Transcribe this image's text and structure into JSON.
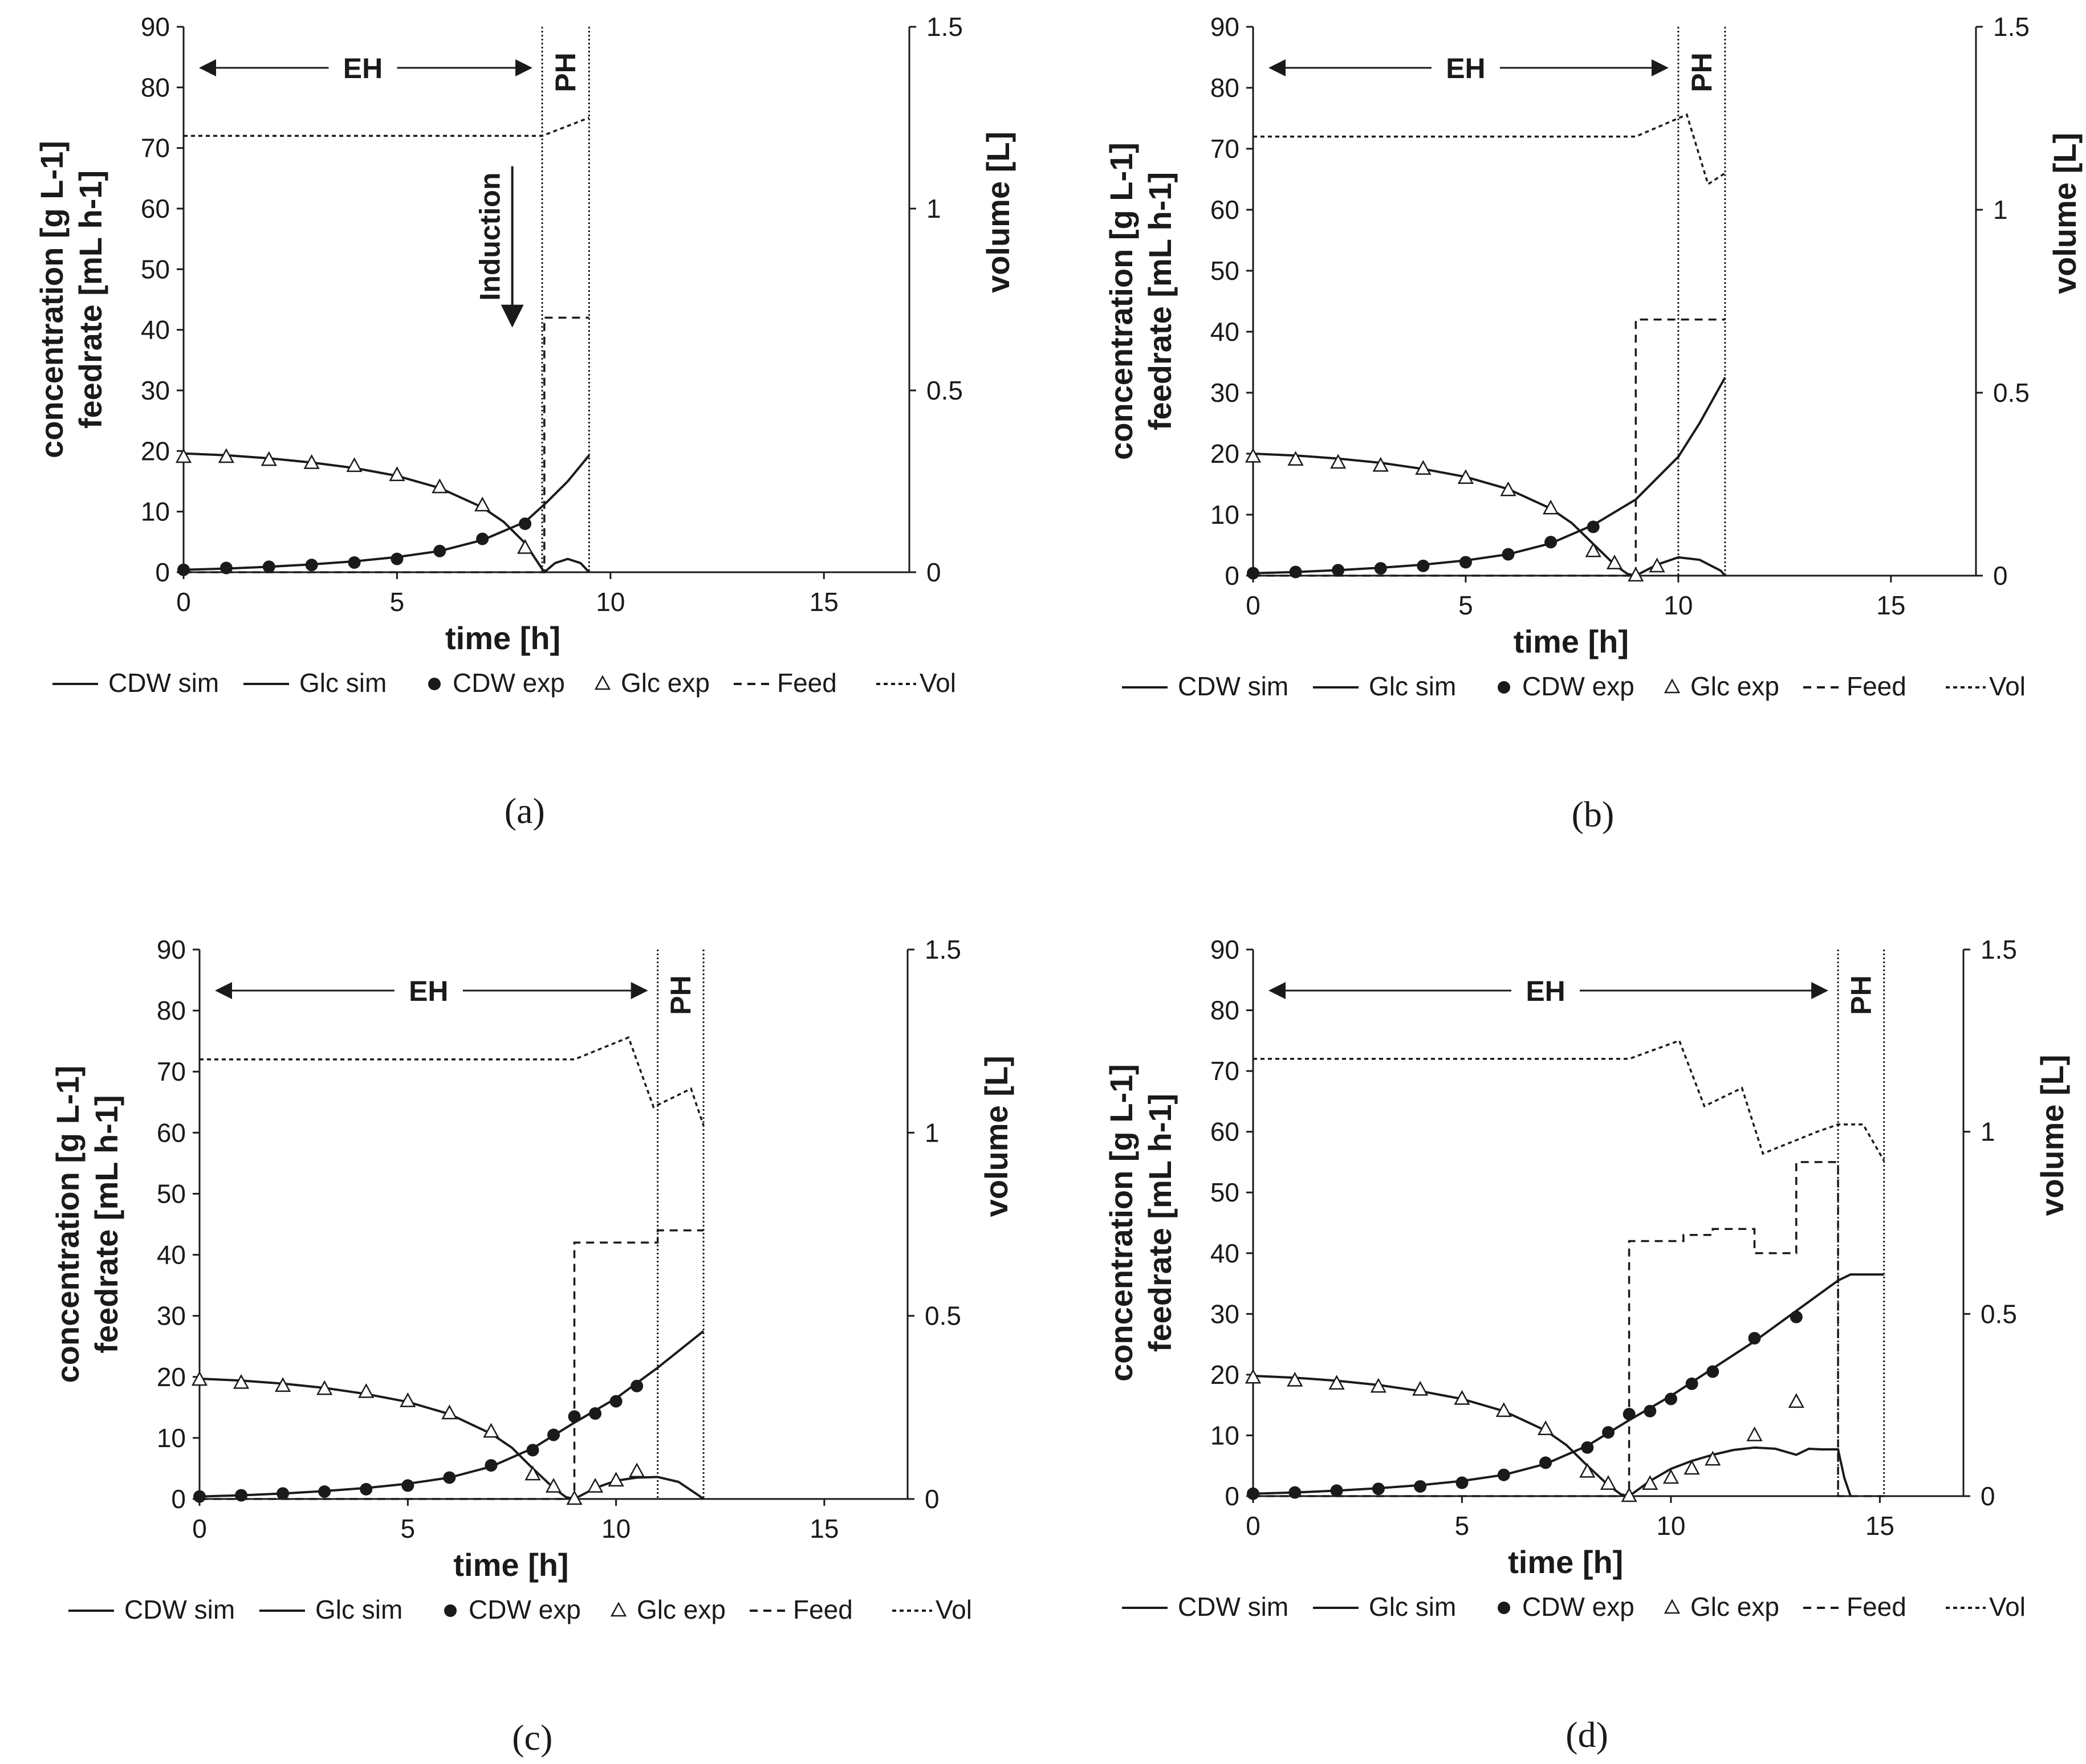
{
  "figure": {
    "legend": [
      "CDW sim",
      "Glc sim",
      "CDW exp",
      "Glc exp",
      "Feed",
      "Vol"
    ],
    "panels_caption_style": "(x)"
  },
  "chart_data": [
    {
      "panel": "a",
      "type": "line",
      "caption": "(a)",
      "xlabel": "time [h]",
      "ylabel_1": "concentration [g L-1]",
      "ylabel_2": "feedrate [mL h-1]",
      "y2label": "volume [L]",
      "xlim": [
        0,
        17
      ],
      "ylim": [
        0,
        90
      ],
      "y2lim": [
        0,
        1.5
      ],
      "x_ticks": [
        0,
        5,
        10,
        15
      ],
      "y_ticks": [
        0,
        10,
        20,
        30,
        40,
        50,
        60,
        70,
        80,
        90
      ],
      "y2_ticks": [
        0,
        0.5,
        1,
        1.5
      ],
      "phases": [
        {
          "label": "EH",
          "x0": 0,
          "x1": 8.4
        },
        {
          "label": "PH",
          "x0": 8.4,
          "x1": 9.5
        }
      ],
      "boundaries": [
        8.4,
        9.5
      ],
      "annotation": {
        "text": "Induction",
        "x": 7.7,
        "y_top": 67,
        "y_bottom": 40
      },
      "series": [
        {
          "name": "CDW sim",
          "x": [
            0,
            1,
            2,
            3,
            4,
            5,
            6,
            7,
            8,
            8.5,
            9,
            9.5
          ],
          "y": [
            0.4,
            0.6,
            0.9,
            1.3,
            1.8,
            2.5,
            3.5,
            5.3,
            8.3,
            11.5,
            15,
            19.3
          ]
        },
        {
          "name": "Glc sim",
          "x": [
            0,
            1,
            2,
            3,
            4,
            5,
            6,
            7,
            7.5,
            8,
            8.3,
            8.45,
            8.7,
            9,
            9.3,
            9.5
          ],
          "y": [
            19.6,
            19.3,
            18.8,
            18.1,
            17.2,
            15.9,
            13.9,
            10.7,
            8.3,
            4.8,
            1.6,
            0,
            1.5,
            2.2,
            1.5,
            0
          ]
        },
        {
          "name": "CDW exp",
          "x": [
            0,
            1,
            2,
            3,
            4,
            5,
            6,
            7,
            8
          ],
          "y": [
            0.4,
            0.7,
            0.9,
            1.2,
            1.6,
            2.2,
            3.5,
            5.5,
            8.0
          ]
        },
        {
          "name": "Glc exp",
          "x": [
            0,
            1,
            2,
            3,
            4,
            5,
            6,
            7,
            8
          ],
          "y": [
            19,
            19,
            18.5,
            18,
            17.5,
            16,
            14,
            11,
            4
          ]
        },
        {
          "name": "Feed",
          "x": [
            0,
            8.45,
            8.45,
            9.5
          ],
          "y": [
            0,
            0,
            42,
            42
          ]
        },
        {
          "name": "Vol",
          "x": [
            0,
            8.4,
            9.5
          ],
          "y": [
            1.2,
            1.2,
            1.25
          ]
        }
      ]
    },
    {
      "panel": "b",
      "type": "line",
      "caption": "(b)",
      "xlabel": "time [h]",
      "ylabel_1": "concentration [g L-1]",
      "ylabel_2": "feedrate [mL h-1]",
      "y2label": "volume [L]",
      "xlim": [
        0,
        17
      ],
      "ylim": [
        0,
        90
      ],
      "y2lim": [
        0,
        1.5
      ],
      "x_ticks": [
        0,
        5,
        10,
        15
      ],
      "y_ticks": [
        0,
        10,
        20,
        30,
        40,
        50,
        60,
        70,
        80,
        90
      ],
      "y2_ticks": [
        0,
        0.5,
        1,
        1.5
      ],
      "phases": [
        {
          "label": "EH",
          "x0": 0,
          "x1": 10
        },
        {
          "label": "PH",
          "x0": 10,
          "x1": 11.1
        }
      ],
      "boundaries": [
        10,
        11.1
      ],
      "series": [
        {
          "name": "CDW sim",
          "x": [
            0,
            1,
            2,
            3,
            4,
            5,
            6,
            7,
            8,
            9,
            10,
            10.5,
            11.1
          ],
          "y": [
            0.4,
            0.6,
            0.9,
            1.3,
            1.8,
            2.5,
            3.5,
            5.3,
            8.3,
            12.5,
            19.5,
            25,
            32.5
          ]
        },
        {
          "name": "Glc sim",
          "x": [
            0,
            1,
            2,
            3,
            4,
            5,
            6,
            7,
            7.5,
            8,
            8.5,
            8.8,
            9,
            9.5,
            10,
            10.5,
            11,
            11.1
          ],
          "y": [
            20,
            19.7,
            19.2,
            18.5,
            17.5,
            16.2,
            14.2,
            11,
            8.6,
            5.2,
            1.8,
            0.3,
            0,
            1.8,
            3,
            2.6,
            0.8,
            0
          ]
        },
        {
          "name": "CDW exp",
          "x": [
            0,
            1,
            2,
            3,
            4,
            5,
            6,
            7,
            8
          ],
          "y": [
            0.4,
            0.6,
            0.9,
            1.2,
            1.6,
            2.2,
            3.5,
            5.5,
            8.0
          ]
        },
        {
          "name": "Glc exp",
          "x": [
            0,
            1,
            2,
            3,
            4,
            5,
            6,
            7,
            8,
            8.5,
            9,
            9.5
          ],
          "y": [
            19.5,
            19,
            18.5,
            18,
            17.5,
            16,
            14,
            11,
            4,
            2,
            0,
            1.5
          ]
        },
        {
          "name": "Feed",
          "x": [
            0,
            9,
            9,
            11.1
          ],
          "y": [
            0,
            0,
            42,
            42
          ]
        },
        {
          "name": "Vol",
          "x": [
            0,
            9,
            10.2,
            10.7,
            11.1
          ],
          "y": [
            1.2,
            1.2,
            1.26,
            1.07,
            1.1
          ]
        }
      ]
    },
    {
      "panel": "c",
      "type": "line",
      "caption": "(c)",
      "xlabel": "time [h]",
      "ylabel_1": "concentration [g L-1]",
      "ylabel_2": "feedrate [mL h-1]",
      "y2label": "volume [L]",
      "xlim": [
        0,
        17
      ],
      "ylim": [
        0,
        90
      ],
      "y2lim": [
        0,
        1.5
      ],
      "x_ticks": [
        0,
        5,
        10,
        15
      ],
      "y_ticks": [
        0,
        10,
        20,
        30,
        40,
        50,
        60,
        70,
        80,
        90
      ],
      "y2_ticks": [
        0,
        0.5,
        1,
        1.5
      ],
      "phases": [
        {
          "label": "EH",
          "x0": 0,
          "x1": 11
        },
        {
          "label": "PH",
          "x0": 11,
          "x1": 12.1
        }
      ],
      "boundaries": [
        11,
        12.1
      ],
      "series": [
        {
          "name": "CDW sim",
          "x": [
            0,
            1,
            2,
            3,
            4,
            5,
            6,
            7,
            8,
            9,
            10,
            11,
            12.1
          ],
          "y": [
            0.4,
            0.6,
            0.9,
            1.3,
            1.8,
            2.5,
            3.5,
            5.3,
            8.3,
            12.5,
            16.5,
            21.5,
            27.5
          ]
        },
        {
          "name": "Glc sim",
          "x": [
            0,
            1,
            2,
            3,
            4,
            5,
            6,
            7,
            7.5,
            8,
            8.5,
            8.8,
            9,
            9.5,
            10,
            10.5,
            11,
            11.5,
            12,
            12.1
          ],
          "y": [
            19.7,
            19.4,
            18.9,
            18.2,
            17.2,
            15.9,
            13.9,
            10.7,
            8.4,
            5,
            1.8,
            0.3,
            0,
            1.8,
            3,
            3.5,
            3.6,
            2.8,
            0.5,
            0
          ]
        },
        {
          "name": "CDW exp",
          "x": [
            0,
            1,
            2,
            3,
            4,
            5,
            6,
            7,
            8,
            8.5,
            9,
            9.5,
            10,
            10.5
          ],
          "y": [
            0.4,
            0.6,
            0.9,
            1.2,
            1.6,
            2.2,
            3.5,
            5.5,
            8.0,
            10.5,
            13.5,
            14,
            16,
            18.5
          ]
        },
        {
          "name": "Glc exp",
          "x": [
            0,
            1,
            2,
            3,
            4,
            5,
            6,
            7,
            8,
            8.5,
            9,
            9.5,
            10,
            10.5
          ],
          "y": [
            19.5,
            19,
            18.5,
            18,
            17.5,
            16,
            14,
            11,
            4,
            2,
            0,
            2,
            3,
            4.5
          ]
        },
        {
          "name": "Feed",
          "x": [
            0,
            9,
            9,
            11,
            11,
            12.1
          ],
          "y": [
            0,
            0,
            42,
            42,
            44,
            44
          ]
        },
        {
          "name": "Vol",
          "x": [
            0,
            9,
            10.3,
            10.9,
            11.8,
            12.1
          ],
          "y": [
            1.2,
            1.2,
            1.26,
            1.07,
            1.12,
            1.02
          ]
        }
      ]
    },
    {
      "panel": "d",
      "type": "line",
      "caption": "(d)",
      "xlabel": "time [h]",
      "ylabel_1": "concentration [g L-1]",
      "ylabel_2": "feedrate [mL h-1]",
      "y2label": "volume [L]",
      "xlim": [
        0,
        17
      ],
      "ylim": [
        0,
        90
      ],
      "y2lim": [
        0,
        1.5
      ],
      "x_ticks": [
        0,
        5,
        10,
        15
      ],
      "y_ticks": [
        0,
        10,
        20,
        30,
        40,
        50,
        60,
        70,
        80,
        90
      ],
      "y2_ticks": [
        0,
        0.5,
        1,
        1.5
      ],
      "phases": [
        {
          "label": "EH",
          "x0": 0,
          "x1": 14
        },
        {
          "label": "PH",
          "x0": 14,
          "x1": 15.1
        }
      ],
      "boundaries": [
        14,
        15.1
      ],
      "series": [
        {
          "name": "CDW sim",
          "x": [
            0,
            1,
            2,
            3,
            4,
            5,
            6,
            7,
            8,
            9,
            10,
            11,
            12,
            13,
            14,
            14.3,
            15.1
          ],
          "y": [
            0.4,
            0.6,
            0.9,
            1.3,
            1.8,
            2.5,
            3.5,
            5.3,
            8.3,
            12.5,
            16.5,
            21,
            25.5,
            30.5,
            35.5,
            36.5,
            36.5
          ]
        },
        {
          "name": "Glc sim",
          "x": [
            0,
            1,
            2,
            3,
            4,
            5,
            6,
            7,
            7.5,
            8,
            8.5,
            8.8,
            9,
            9.5,
            10,
            10.5,
            11,
            11.5,
            12,
            12.5,
            13,
            13.3,
            13.6,
            14,
            14.15,
            14.3
          ],
          "y": [
            19.8,
            19.5,
            19,
            18.3,
            17.3,
            16,
            14,
            10.8,
            8.4,
            5,
            1.8,
            0.3,
            0,
            2.5,
            4.5,
            5.8,
            6.8,
            7.6,
            8,
            7.8,
            6.8,
            7.8,
            7.7,
            7.7,
            3,
            0
          ]
        },
        {
          "name": "CDW exp",
          "x": [
            0,
            1,
            2,
            3,
            4,
            5,
            6,
            7,
            8,
            8.5,
            9,
            9.5,
            10,
            10.5,
            11,
            12,
            13
          ],
          "y": [
            0.4,
            0.6,
            0.9,
            1.2,
            1.6,
            2.2,
            3.5,
            5.5,
            8.0,
            10.5,
            13.5,
            14,
            16,
            18.5,
            20.5,
            26,
            29.5
          ]
        },
        {
          "name": "Glc exp",
          "x": [
            0,
            1,
            2,
            3,
            4,
            5,
            6,
            7,
            8,
            8.5,
            9,
            9.5,
            10,
            10.5,
            11,
            12,
            13
          ],
          "y": [
            19.5,
            19,
            18.5,
            18,
            17.5,
            16,
            14,
            11,
            4,
            2,
            0,
            2,
            3,
            4.5,
            6,
            10,
            15.5
          ]
        },
        {
          "name": "Feed",
          "x": [
            0,
            9,
            9,
            10.3,
            10.3,
            11,
            11,
            12,
            12,
            13,
            13,
            14,
            14,
            15.1
          ],
          "y": [
            0,
            0,
            42,
            42,
            43,
            43,
            44,
            44,
            40,
            40,
            55,
            55,
            0,
            0
          ]
        },
        {
          "name": "Vol",
          "x": [
            0,
            9,
            10.2,
            10.8,
            11.7,
            12.2,
            13.5,
            14,
            14.6,
            15.1
          ],
          "y": [
            1.2,
            1.2,
            1.25,
            1.07,
            1.12,
            0.94,
            1,
            1.02,
            1.02,
            0.92
          ]
        }
      ]
    }
  ]
}
